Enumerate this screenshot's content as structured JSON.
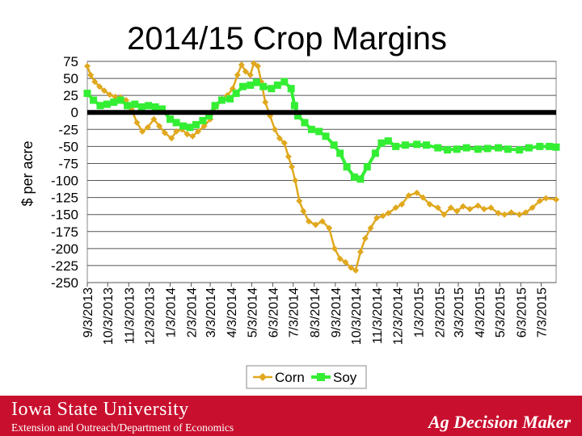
{
  "chart_data": {
    "type": "line",
    "title": "2014/15 Crop Margins",
    "ylabel": "$ per acre",
    "xlabel": "",
    "ylim": [
      -250,
      75
    ],
    "yticks": [
      75,
      50,
      25,
      0,
      -25,
      -50,
      -75,
      -100,
      -125,
      -150,
      -175,
      -200,
      -225,
      -250
    ],
    "xlim": [
      "2013-09-03",
      "2015-07-25"
    ],
    "xtick_labels": [
      "9/3/2013",
      "10/3/2013",
      "11/3/2013",
      "12/3/2013",
      "1/3/2014",
      "2/3/2014",
      "3/3/2014",
      "4/3/2014",
      "5/3/2014",
      "6/3/2014",
      "7/3/2014",
      "8/3/2014",
      "9/3/2014",
      "10/3/2014",
      "11/3/2014",
      "12/3/2014",
      "1/3/2015",
      "2/3/2015",
      "3/3/2015",
      "4/3/2015",
      "5/3/2015",
      "6/3/2015",
      "7/3/2015"
    ],
    "grid": true,
    "zero_line": true,
    "legend_position": "bottom",
    "series": [
      {
        "name": "Corn",
        "color": "#e0a81e",
        "marker": "diamond",
        "points": [
          [
            "2013-09-03",
            68
          ],
          [
            "2013-09-08",
            55
          ],
          [
            "2013-09-14",
            45
          ],
          [
            "2013-09-21",
            38
          ],
          [
            "2013-09-28",
            32
          ],
          [
            "2013-10-06",
            26
          ],
          [
            "2013-10-14",
            23
          ],
          [
            "2013-10-22",
            22
          ],
          [
            "2013-10-30",
            18
          ],
          [
            "2013-11-07",
            5
          ],
          [
            "2013-11-15",
            -15
          ],
          [
            "2013-11-23",
            -28
          ],
          [
            "2013-12-01",
            -22
          ],
          [
            "2013-12-10",
            -10
          ],
          [
            "2013-12-18",
            -20
          ],
          [
            "2013-12-26",
            -30
          ],
          [
            "2014-01-05",
            -38
          ],
          [
            "2014-01-12",
            -28
          ],
          [
            "2014-01-20",
            -25
          ],
          [
            "2014-01-28",
            -32
          ],
          [
            "2014-02-05",
            -35
          ],
          [
            "2014-02-13",
            -28
          ],
          [
            "2014-02-22",
            -20
          ],
          [
            "2014-03-03",
            -10
          ],
          [
            "2014-03-12",
            10
          ],
          [
            "2014-03-20",
            20
          ],
          [
            "2014-03-28",
            25
          ],
          [
            "2014-04-05",
            35
          ],
          [
            "2014-04-12",
            55
          ],
          [
            "2014-04-18",
            70
          ],
          [
            "2014-04-24",
            60
          ],
          [
            "2014-05-01",
            55
          ],
          [
            "2014-05-06",
            72
          ],
          [
            "2014-05-12",
            68
          ],
          [
            "2014-05-17",
            45
          ],
          [
            "2014-05-23",
            15
          ],
          [
            "2014-05-30",
            -5
          ],
          [
            "2014-06-06",
            -25
          ],
          [
            "2014-06-13",
            -38
          ],
          [
            "2014-06-20",
            -45
          ],
          [
            "2014-06-26",
            -65
          ],
          [
            "2014-07-01",
            -80
          ],
          [
            "2014-07-06",
            -100
          ],
          [
            "2014-07-12",
            -130
          ],
          [
            "2014-07-18",
            -145
          ],
          [
            "2014-07-26",
            -160
          ],
          [
            "2014-08-05",
            -165
          ],
          [
            "2014-08-15",
            -160
          ],
          [
            "2014-08-25",
            -170
          ],
          [
            "2014-09-02",
            -200
          ],
          [
            "2014-09-10",
            -215
          ],
          [
            "2014-09-18",
            -220
          ],
          [
            "2014-09-26",
            -228
          ],
          [
            "2014-10-03",
            -232
          ],
          [
            "2014-10-10",
            -205
          ],
          [
            "2014-10-17",
            -185
          ],
          [
            "2014-10-25",
            -170
          ],
          [
            "2014-11-03",
            -155
          ],
          [
            "2014-11-12",
            -152
          ],
          [
            "2014-11-20",
            -148
          ],
          [
            "2014-12-01",
            -140
          ],
          [
            "2014-12-10",
            -135
          ],
          [
            "2014-12-20",
            -122
          ],
          [
            "2015-01-01",
            -118
          ],
          [
            "2015-01-10",
            -125
          ],
          [
            "2015-01-20",
            -135
          ],
          [
            "2015-02-01",
            -140
          ],
          [
            "2015-02-10",
            -150
          ],
          [
            "2015-02-20",
            -140
          ],
          [
            "2015-03-01",
            -145
          ],
          [
            "2015-03-10",
            -138
          ],
          [
            "2015-03-20",
            -142
          ],
          [
            "2015-04-01",
            -137
          ],
          [
            "2015-04-10",
            -142
          ],
          [
            "2015-04-20",
            -140
          ],
          [
            "2015-05-01",
            -148
          ],
          [
            "2015-05-10",
            -150
          ],
          [
            "2015-05-20",
            -147
          ],
          [
            "2015-06-01",
            -150
          ],
          [
            "2015-06-10",
            -147
          ],
          [
            "2015-06-20",
            -140
          ],
          [
            "2015-07-01",
            -130
          ],
          [
            "2015-07-10",
            -126
          ],
          [
            "2015-07-25",
            -128
          ]
        ]
      },
      {
        "name": "Soy",
        "color": "#33ee33",
        "marker": "square",
        "points": [
          [
            "2013-09-03",
            28
          ],
          [
            "2013-09-12",
            18
          ],
          [
            "2013-09-22",
            10
          ],
          [
            "2013-10-02",
            12
          ],
          [
            "2013-10-12",
            15
          ],
          [
            "2013-10-22",
            18
          ],
          [
            "2013-11-01",
            10
          ],
          [
            "2013-11-12",
            12
          ],
          [
            "2013-11-22",
            8
          ],
          [
            "2013-12-02",
            10
          ],
          [
            "2013-12-12",
            8
          ],
          [
            "2013-12-22",
            5
          ],
          [
            "2014-01-03",
            -10
          ],
          [
            "2014-01-12",
            -15
          ],
          [
            "2014-01-22",
            -20
          ],
          [
            "2014-02-01",
            -22
          ],
          [
            "2014-02-10",
            -18
          ],
          [
            "2014-02-20",
            -12
          ],
          [
            "2014-03-01",
            -5
          ],
          [
            "2014-03-10",
            10
          ],
          [
            "2014-03-20",
            18
          ],
          [
            "2014-04-01",
            20
          ],
          [
            "2014-04-10",
            28
          ],
          [
            "2014-04-20",
            38
          ],
          [
            "2014-05-01",
            40
          ],
          [
            "2014-05-10",
            44
          ],
          [
            "2014-05-20",
            38
          ],
          [
            "2014-06-01",
            35
          ],
          [
            "2014-06-10",
            40
          ],
          [
            "2014-06-20",
            45
          ],
          [
            "2014-06-30",
            35
          ],
          [
            "2014-07-05",
            10
          ],
          [
            "2014-07-10",
            -5
          ],
          [
            "2014-07-20",
            -15
          ],
          [
            "2014-07-30",
            -25
          ],
          [
            "2014-08-10",
            -28
          ],
          [
            "2014-08-20",
            -35
          ],
          [
            "2014-09-01",
            -48
          ],
          [
            "2014-09-10",
            -60
          ],
          [
            "2014-09-20",
            -80
          ],
          [
            "2014-10-01",
            -95
          ],
          [
            "2014-10-10",
            -98
          ],
          [
            "2014-10-20",
            -80
          ],
          [
            "2014-11-01",
            -60
          ],
          [
            "2014-11-10",
            -45
          ],
          [
            "2014-11-20",
            -42
          ],
          [
            "2014-12-01",
            -50
          ],
          [
            "2014-12-15",
            -48
          ],
          [
            "2015-01-01",
            -47
          ],
          [
            "2015-01-15",
            -48
          ],
          [
            "2015-02-01",
            -52
          ],
          [
            "2015-02-15",
            -55
          ],
          [
            "2015-03-01",
            -54
          ],
          [
            "2015-03-15",
            -52
          ],
          [
            "2015-04-01",
            -54
          ],
          [
            "2015-04-15",
            -53
          ],
          [
            "2015-05-01",
            -52
          ],
          [
            "2015-05-15",
            -54
          ],
          [
            "2015-06-01",
            -55
          ],
          [
            "2015-06-15",
            -52
          ],
          [
            "2015-07-01",
            -50
          ],
          [
            "2015-07-15",
            -50
          ],
          [
            "2015-07-25",
            -51
          ]
        ]
      }
    ]
  },
  "footer": {
    "logo_text": "Iowa State University",
    "dept_text": "Extension and Outreach/Department of Economics",
    "brand_text": "Ag Decision Maker",
    "bar_color": "#c8102e"
  }
}
